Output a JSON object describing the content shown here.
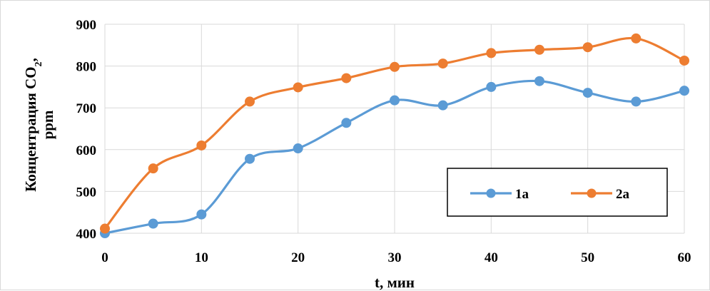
{
  "chart_data": {
    "type": "line",
    "xlabel": "t, мин",
    "ylabel": {
      "part1": "Концентрация CO",
      "subscript": "2",
      "part2": ",",
      "line2": "ppm"
    },
    "xlim": [
      0,
      60
    ],
    "ylim": [
      400,
      900
    ],
    "x_ticks": [
      0,
      10,
      20,
      30,
      40,
      50,
      60
    ],
    "y_ticks": [
      400,
      500,
      600,
      700,
      800,
      900
    ],
    "grid": true,
    "smooth": true,
    "legend_position": "lower-right",
    "x": [
      0,
      5,
      10,
      15,
      20,
      25,
      30,
      35,
      40,
      45,
      50,
      55,
      60
    ],
    "series": [
      {
        "name": "1a",
        "color": "#5b9bd5",
        "values": [
          400,
          423,
          445,
          578,
          603,
          664,
          718,
          706,
          750,
          764,
          736,
          715,
          741
        ]
      },
      {
        "name": "2a",
        "color": "#ed7d31",
        "values": [
          411,
          555,
          610,
          715,
          749,
          771,
          798,
          806,
          831,
          839,
          845,
          866,
          813
        ]
      }
    ]
  }
}
